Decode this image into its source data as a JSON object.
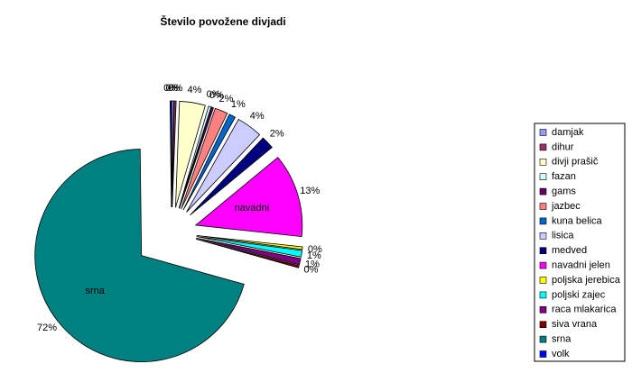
{
  "chart_data": {
    "type": "pie",
    "title": "Število povožene divjadi",
    "categories": [
      "damjak",
      "dihur",
      "divji prašič",
      "fazan",
      "gams",
      "jazbec",
      "kuna belica",
      "lisica",
      "medved",
      "navadni jelen",
      "poljska jerebica",
      "poljski zajec",
      "raca mlakarica",
      "siva vrana",
      "srna",
      "volk"
    ],
    "values": [
      0.3,
      0.3,
      4,
      0.4,
      0.3,
      2,
      1,
      4,
      2,
      13,
      0.4,
      1,
      1,
      0.3,
      72,
      0.2
    ],
    "value_labels": [
      "0%",
      "0%",
      "4%",
      "0%",
      "0%",
      "2%",
      "1%",
      "4%",
      "2%",
      "13%",
      "0%",
      "1%",
      "1%",
      "0%",
      "72%",
      "0%"
    ],
    "slice_labels": [
      null,
      null,
      null,
      null,
      null,
      null,
      null,
      null,
      null,
      "navadni",
      null,
      null,
      null,
      null,
      "srna",
      null
    ],
    "colors": [
      "#9999FF",
      "#993366",
      "#FFFFCC",
      "#CCFFFF",
      "#660066",
      "#FF8080",
      "#0066CC",
      "#CCCCFF",
      "#000080",
      "#FF00FF",
      "#FFFF00",
      "#00FFFF",
      "#800080",
      "#800000",
      "#008080",
      "#0000FF"
    ],
    "legend": "right"
  }
}
